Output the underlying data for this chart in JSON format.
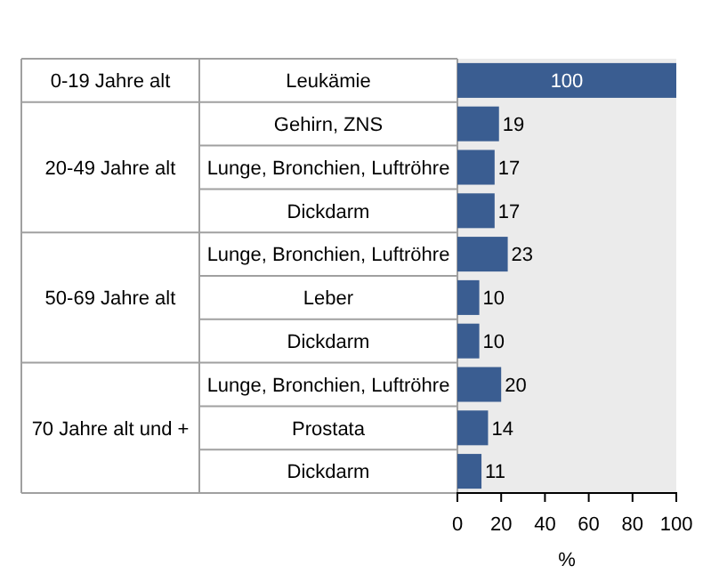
{
  "chart_data": {
    "type": "bar",
    "orientation": "horizontal",
    "categories": [
      "Leukämie",
      "Gehirn, ZNS",
      "Lunge, Bronchien, Luftröhre",
      "Dickdarm",
      "Lunge, Bronchien, Luftröhre",
      "Leber",
      "Dickdarm",
      "Lunge, Bronchien, Luftröhre",
      "Prostata",
      "Dickdarm"
    ],
    "values": [
      100,
      19,
      17,
      17,
      23,
      10,
      10,
      20,
      14,
      11
    ],
    "color": "#3a5d91",
    "xlim": [
      0,
      100
    ],
    "xticks": [
      0,
      20,
      40,
      60,
      80,
      100
    ],
    "xlabel": "%",
    "data_labels": true,
    "annotations": [
      "0-19 Jahre alt",
      "20-49 Jahre alt",
      "50-69 Jahre alt",
      "70 Jahre alt und +"
    ]
  }
}
